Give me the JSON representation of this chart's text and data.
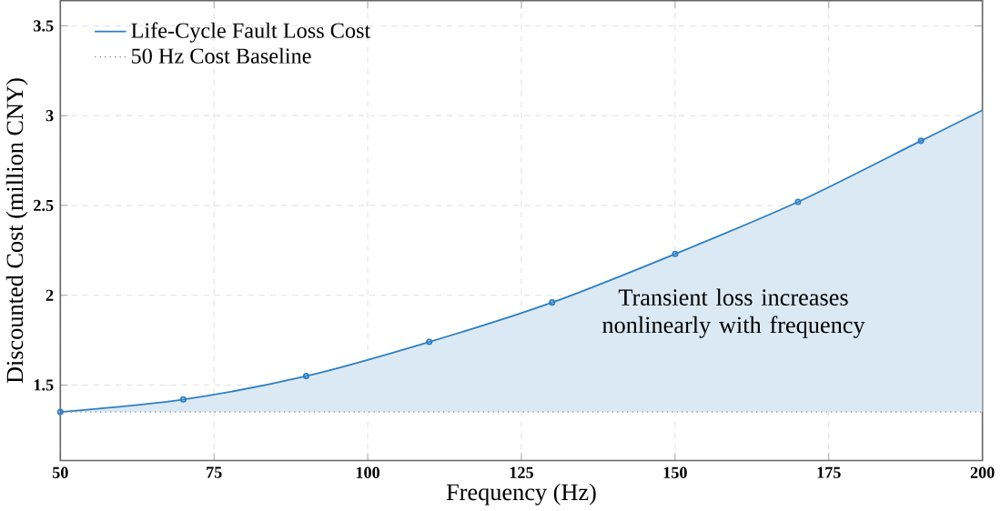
{
  "chart_data": {
    "type": "area",
    "xlabel": "Frequency (Hz)",
    "ylabel": "Discounted Cost (million CNY)",
    "x": [
      50,
      70,
      90,
      110,
      130,
      150,
      170,
      190,
      200
    ],
    "series": [
      {
        "name": "Life-Cycle Fault Loss Cost",
        "color": "#2e7fc1",
        "values": [
          1.35,
          1.42,
          1.55,
          1.74,
          1.96,
          2.23,
          2.52,
          2.86,
          3.03
        ]
      }
    ],
    "ref_lines": [
      {
        "axis": "y",
        "value": 1.35,
        "label": "50 Hz Cost Baseline",
        "color": "#8c8c8c",
        "line_style": "dotted"
      }
    ],
    "annotations": [
      "Transient loss increases nonlinearly with frequency"
    ],
    "xlim": [
      50,
      200
    ],
    "ylim": [
      1.08,
      3.64
    ],
    "xticks": [
      50,
      75,
      100,
      125,
      150,
      175,
      200
    ],
    "yticks": [
      1.5,
      2,
      2.5,
      3,
      3.5
    ],
    "grid": true,
    "legend": "top left",
    "marker": "circle",
    "line_style": "solid"
  }
}
